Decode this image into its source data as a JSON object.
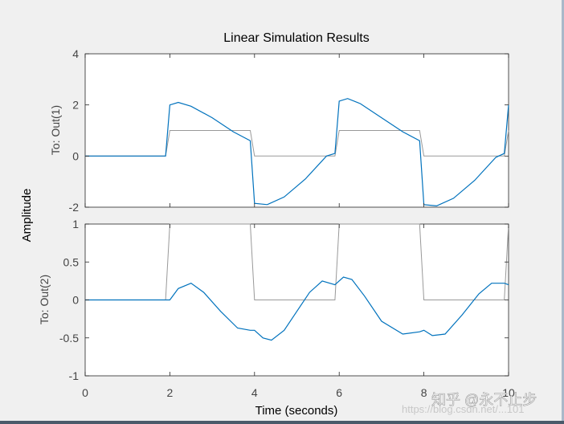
{
  "window": {
    "background": "#f0f0f0",
    "watermark": "知乎 @永不止步",
    "url_watermark": "https://blog.csdn.net/...101"
  },
  "chart_data": [
    {
      "type": "line",
      "title": "Linear Simulation Results",
      "ylabel": "To: Out(1)",
      "shared_ylabel": "Amplitude",
      "xlim": [
        0,
        10
      ],
      "ylim": [
        -2,
        4
      ],
      "yticks": [
        4,
        2,
        0,
        -2
      ],
      "grid": false,
      "series": [
        {
          "color": "#999999",
          "x": [
            0,
            1.9,
            2.0,
            3.9,
            4.0,
            5.9,
            6.0,
            7.9,
            8.0,
            9.9,
            10.0
          ],
          "y": [
            0,
            0,
            1,
            1,
            0,
            0,
            1,
            1,
            0,
            0,
            1
          ]
        },
        {
          "color": "#0072bd",
          "x": [
            0,
            1.9,
            2.0,
            2.2,
            2.5,
            3.0,
            3.5,
            3.9,
            4.0,
            4.3,
            4.7,
            5.2,
            5.7,
            5.9,
            6.0,
            6.2,
            6.5,
            7.0,
            7.5,
            7.9,
            8.0,
            8.3,
            8.7,
            9.2,
            9.7,
            9.9,
            10.0
          ],
          "y": [
            0,
            0,
            2.0,
            2.1,
            1.95,
            1.5,
            0.95,
            0.6,
            -1.85,
            -1.9,
            -1.6,
            -0.9,
            0.0,
            0.1,
            2.15,
            2.25,
            2.05,
            1.5,
            0.95,
            0.6,
            -1.9,
            -1.95,
            -1.65,
            -0.95,
            -0.05,
            0.1,
            2.0
          ]
        }
      ]
    },
    {
      "type": "line",
      "ylabel": "To: Out(2)",
      "xlabel": "Time (seconds)",
      "xlim": [
        0,
        10
      ],
      "ylim": [
        -1,
        1
      ],
      "xticks": [
        0,
        2,
        4,
        6,
        8,
        10
      ],
      "yticks": [
        1,
        0.5,
        0,
        -0.5,
        -1
      ],
      "grid": false,
      "series": [
        {
          "color": "#999999",
          "x": [
            0,
            1.9,
            2.0,
            3.9,
            4.0,
            5.9,
            6.0,
            7.9,
            8.0,
            9.9,
            10.0
          ],
          "y": [
            0,
            0,
            1,
            1,
            0,
            0,
            1,
            1,
            0,
            0,
            1
          ]
        },
        {
          "color": "#0072bd",
          "x": [
            0,
            1.9,
            2.0,
            2.2,
            2.5,
            2.8,
            3.2,
            3.6,
            3.9,
            4.0,
            4.2,
            4.4,
            4.7,
            5.0,
            5.3,
            5.6,
            5.9,
            6.1,
            6.3,
            6.6,
            7.0,
            7.5,
            7.9,
            8.0,
            8.2,
            8.5,
            8.9,
            9.3,
            9.6,
            9.9,
            10.0
          ],
          "y": [
            0,
            0,
            0.0,
            0.15,
            0.22,
            0.1,
            -0.15,
            -0.37,
            -0.4,
            -0.4,
            -0.5,
            -0.53,
            -0.4,
            -0.15,
            0.1,
            0.25,
            0.2,
            0.3,
            0.27,
            0.05,
            -0.28,
            -0.45,
            -0.42,
            -0.4,
            -0.47,
            -0.45,
            -0.2,
            0.08,
            0.22,
            0.22,
            0.2
          ]
        }
      ]
    }
  ]
}
